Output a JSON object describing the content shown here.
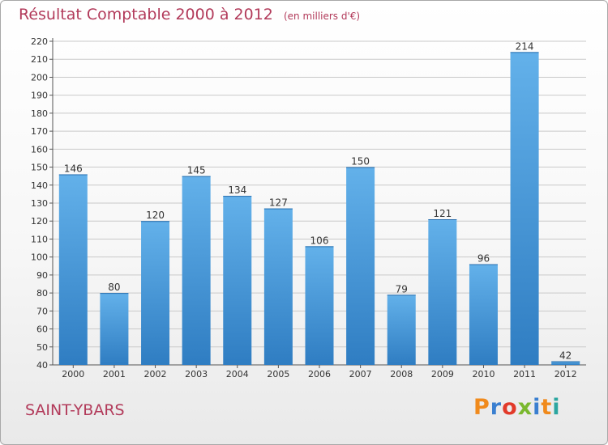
{
  "title": "Résultat Comptable 2000 à 2012",
  "unit_note": "(en milliers d'€)",
  "commune": "SAINT-YBARS",
  "brand": {
    "text": "Proxiti",
    "letter_colors": [
      "#f08a1c",
      "#3a7fd0",
      "#e23a2a",
      "#7ab82e",
      "#3a7fd0",
      "#f08a1c",
      "#2ba6a0"
    ]
  },
  "colors": {
    "bar_top": "#63b1ea",
    "bar_bottom": "#2f7dc2",
    "grid": "#c9c9c9",
    "title": "#b23a5a"
  },
  "chart_data": {
    "type": "bar",
    "categories": [
      "2000",
      "2001",
      "2002",
      "2003",
      "2004",
      "2005",
      "2006",
      "2007",
      "2008",
      "2009",
      "2010",
      "2011",
      "2012"
    ],
    "values": [
      146,
      80,
      120,
      145,
      134,
      127,
      106,
      150,
      79,
      121,
      96,
      214,
      42
    ],
    "title": "Résultat Comptable 2000 à 2012",
    "xlabel": "",
    "ylabel": "",
    "ylim": [
      40,
      220
    ],
    "yticks": [
      40,
      50,
      60,
      70,
      80,
      90,
      100,
      110,
      120,
      130,
      140,
      150,
      160,
      170,
      180,
      190,
      200,
      210,
      220
    ],
    "grid": true,
    "data_labels": true
  }
}
